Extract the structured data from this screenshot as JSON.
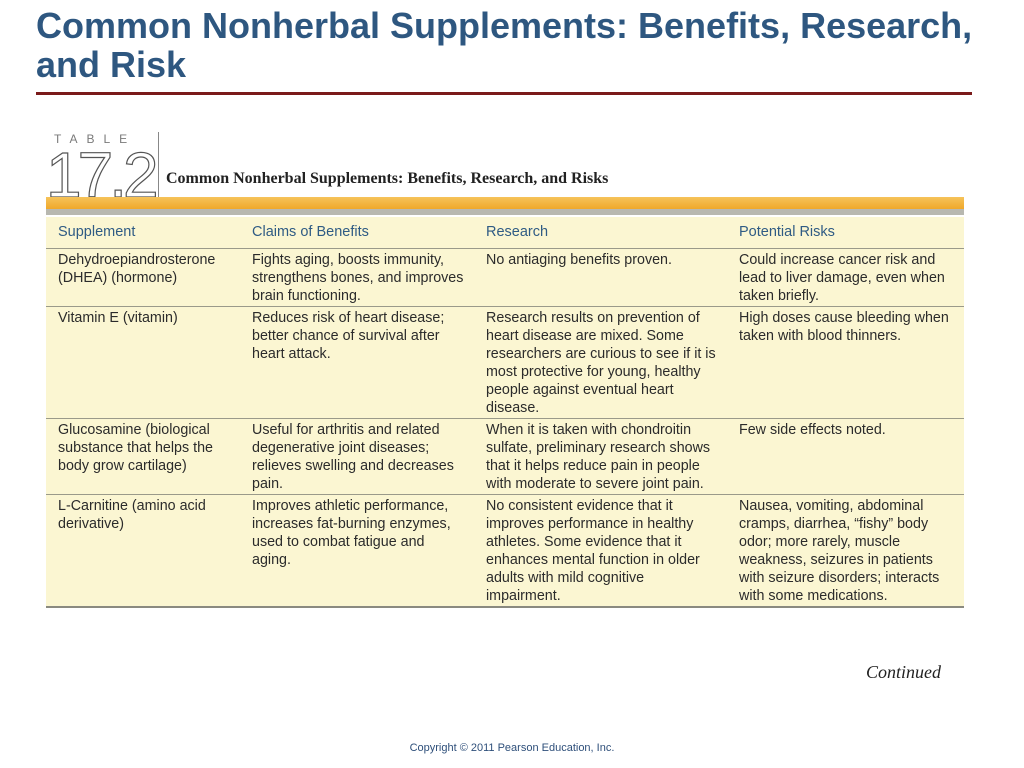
{
  "slide": {
    "title": "Common Nonherbal Supplements: Benefits, Research, and Risk",
    "continued": "Continued",
    "copyright": "Copyright © 2011 Pearson Education, Inc."
  },
  "table": {
    "label": "TABLE",
    "number": "17.2",
    "caption": "Common Nonherbal Supplements: Benefits, Research, and Risks",
    "accent_color": "#f0a82a",
    "background_color": "#fbf6d2",
    "header_text_color": "#2f5b84",
    "columns": [
      "Supplement",
      "Claims of Benefits",
      "Research",
      "Potential Risks"
    ],
    "rows": [
      {
        "supplement": "Dehydroepiandrosterone (DHEA) (hormone)",
        "claims": "Fights aging, boosts immunity, strengthens bones, and improves brain functioning.",
        "research": "No antiaging benefits proven.",
        "risks": "Could increase cancer risk and lead to liver damage, even when taken briefly."
      },
      {
        "supplement": "Vitamin E (vitamin)",
        "claims": "Reduces risk of heart disease; better chance of survival after heart attack.",
        "research": "Research results on prevention of heart disease are mixed. Some researchers are curious to see if it is most protective for young, healthy people against eventual heart disease.",
        "risks": "High doses cause bleeding when taken with blood thinners."
      },
      {
        "supplement": "Glucosamine (biological substance that helps the body grow cartilage)",
        "claims": "Useful for arthritis and related degenerative joint diseases; relieves swelling and decreases pain.",
        "research": "When it is taken with chondroitin sulfate, preliminary research shows that it helps reduce pain in people with moderate to severe joint pain.",
        "risks": "Few side effects noted."
      },
      {
        "supplement": "L-Carnitine (amino acid derivative)",
        "claims": "Improves athletic performance, increases fat-burning enzymes, used to combat fatigue and aging.",
        "research": "No consistent evidence that it improves performance in healthy athletes. Some evidence that it enhances mental function in older adults with mild cognitive impairment.",
        "risks": "Nausea, vomiting, abdominal cramps, diarrhea, “fishy” body odor; more rarely, muscle weakness, seizures in patients with seizure disorders; interacts with some medications."
      }
    ]
  }
}
